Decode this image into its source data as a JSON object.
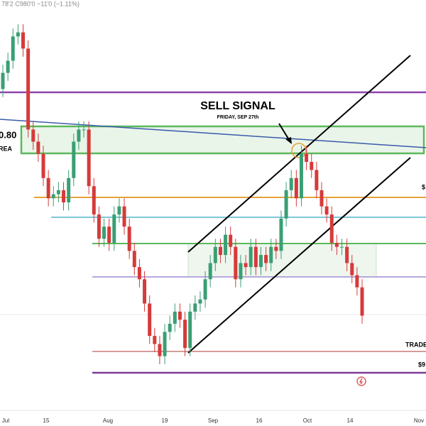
{
  "header_text": "78'2  C980'0  −11'0 (−1.11%)",
  "annotations": {
    "signal_title": "SELL SIGNAL",
    "signal_date": "FRIDAY, SEP 27th",
    "left_price": "0.80",
    "left_area": "REA",
    "right_mark": "$",
    "trade_label": "TRADE",
    "bottom_price": "$9"
  },
  "x_labels": [
    "Jul",
    "15",
    "Aug",
    "19",
    "Sep",
    "16",
    "Oct",
    "14",
    "Nov"
  ],
  "chart_data": {
    "type": "candlestick",
    "up_color": "#3a9f74",
    "down_color": "#d63a3a",
    "ylim": [
      0,
      100
    ],
    "open": [
      78,
      82,
      85,
      91,
      92,
      88,
      68,
      65,
      62,
      56,
      51,
      52,
      53,
      50,
      56,
      65,
      68,
      68,
      54,
      47,
      41,
      44,
      40,
      47,
      49,
      44,
      38,
      34,
      31,
      25,
      17,
      15,
      12,
      18,
      20,
      23,
      21,
      14,
      23,
      25,
      26,
      31,
      35,
      39,
      37,
      42,
      39,
      31,
      35,
      34,
      39,
      34,
      37,
      35,
      39,
      38,
      46,
      53,
      56,
      51,
      62,
      60,
      58,
      53,
      49,
      47,
      40,
      39,
      39,
      35,
      32,
      29
    ],
    "high": [
      84,
      87,
      93,
      94,
      94,
      90,
      70,
      67,
      64,
      58,
      54,
      55,
      55,
      58,
      67,
      70,
      70,
      70,
      56,
      49,
      46,
      46,
      49,
      51,
      51,
      46,
      40,
      36,
      33,
      27,
      19,
      17,
      20,
      22,
      25,
      25,
      23,
      25,
      27,
      28,
      33,
      37,
      41,
      41,
      44,
      44,
      41,
      37,
      37,
      41,
      41,
      39,
      39,
      41,
      41,
      48,
      55,
      58,
      58,
      64,
      64,
      62,
      60,
      55,
      51,
      49,
      42,
      41,
      41,
      37,
      34,
      31
    ],
    "low": [
      76,
      80,
      83,
      89,
      86,
      66,
      63,
      60,
      54,
      49,
      49,
      50,
      48,
      48,
      54,
      63,
      66,
      52,
      45,
      39,
      39,
      38,
      38,
      45,
      42,
      36,
      32,
      29,
      23,
      15,
      13,
      10,
      10,
      16,
      18,
      19,
      12,
      12,
      21,
      23,
      24,
      29,
      33,
      35,
      35,
      37,
      29,
      29,
      32,
      32,
      32,
      32,
      33,
      33,
      36,
      36,
      44,
      51,
      49,
      49,
      58,
      56,
      51,
      47,
      45,
      38,
      37,
      37,
      33,
      30,
      27,
      20
    ],
    "close": [
      82,
      85,
      91,
      92,
      88,
      68,
      65,
      62,
      56,
      51,
      52,
      53,
      50,
      56,
      65,
      68,
      68,
      54,
      47,
      41,
      44,
      40,
      47,
      49,
      44,
      38,
      34,
      31,
      25,
      17,
      15,
      12,
      18,
      20,
      23,
      21,
      14,
      23,
      25,
      26,
      31,
      35,
      39,
      37,
      42,
      39,
      31,
      35,
      34,
      39,
      34,
      37,
      35,
      39,
      38,
      46,
      53,
      56,
      51,
      62,
      60,
      58,
      53,
      49,
      47,
      40,
      39,
      39,
      35,
      32,
      29,
      22
    ]
  }
}
